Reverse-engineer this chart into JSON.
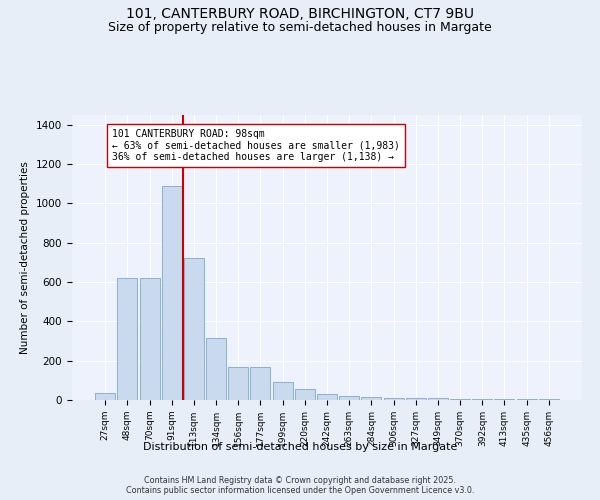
{
  "title1": "101, CANTERBURY ROAD, BIRCHINGTON, CT7 9BU",
  "title2": "Size of property relative to semi-detached houses in Margate",
  "xlabel": "Distribution of semi-detached houses by size in Margate",
  "ylabel": "Number of semi-detached properties",
  "categories": [
    "27sqm",
    "48sqm",
    "70sqm",
    "91sqm",
    "113sqm",
    "134sqm",
    "156sqm",
    "177sqm",
    "199sqm",
    "220sqm",
    "242sqm",
    "263sqm",
    "284sqm",
    "306sqm",
    "327sqm",
    "349sqm",
    "370sqm",
    "392sqm",
    "413sqm",
    "435sqm",
    "456sqm"
  ],
  "bar_heights": [
    35,
    620,
    620,
    1090,
    720,
    315,
    170,
    170,
    90,
    55,
    30,
    20,
    15,
    10,
    10,
    10,
    5,
    5,
    5,
    5,
    5
  ],
  "bar_color": "#c9d9ee",
  "bar_edge_color": "#7aaad0",
  "vline_x": 3.5,
  "vline_color": "#cc0000",
  "annotation_text": "101 CANTERBURY ROAD: 98sqm\n← 63% of semi-detached houses are smaller (1,983)\n36% of semi-detached houses are larger (1,138) →",
  "annotation_box_color": "#ffffff",
  "annotation_box_edge": "#cc0000",
  "ylim": [
    0,
    1450
  ],
  "yticks": [
    0,
    200,
    400,
    600,
    800,
    1000,
    1200,
    1400
  ],
  "footer": "Contains HM Land Registry data © Crown copyright and database right 2025.\nContains public sector information licensed under the Open Government Licence v3.0.",
  "bg_color": "#e8eef8",
  "plot_bg_color": "#eef2fc",
  "grid_color": "#ffffff",
  "title_fontsize": 10,
  "subtitle_fontsize": 9
}
